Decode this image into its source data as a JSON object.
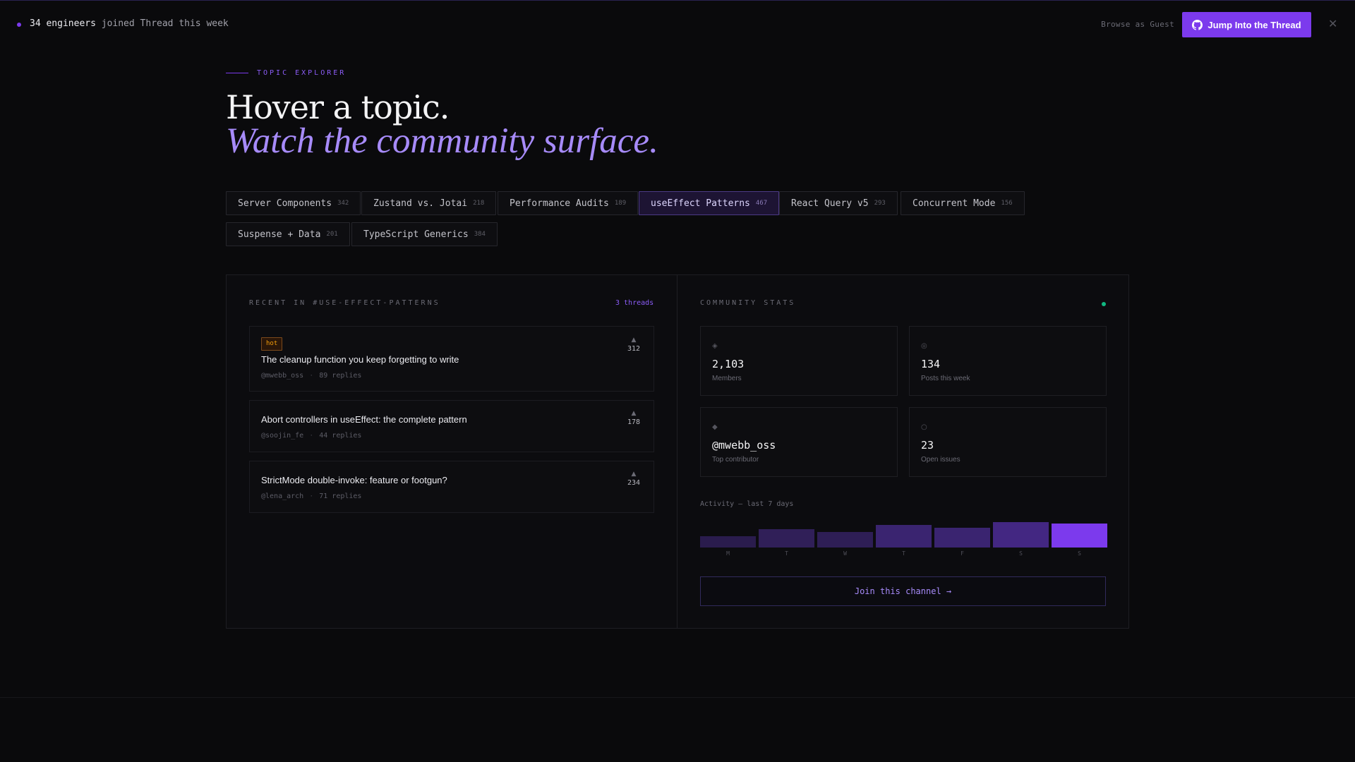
{
  "banner": {
    "count_text": "34 engineers",
    "rest_text": " joined Thread this week",
    "guest_link": "Browse as Guest",
    "cta_label": "Jump Into the Thread",
    "cta_icon": "github-icon",
    "close_icon": "close-icon"
  },
  "hero": {
    "eyebrow": "TOPIC EXPLORER",
    "title_line1": "Hover a topic.",
    "title_line2": "Watch the community surface."
  },
  "topics": [
    {
      "label": "Server Components",
      "count": "342",
      "active": false
    },
    {
      "label": "Zustand vs. Jotai",
      "count": "218",
      "active": false
    },
    {
      "label": "Performance Audits",
      "count": "189",
      "active": false
    },
    {
      "label": "useEffect Patterns",
      "count": "467",
      "active": true
    },
    {
      "label": "React Query v5",
      "count": "293",
      "active": false
    },
    {
      "label": "Concurrent Mode",
      "count": "156",
      "active": false
    },
    {
      "label": "Suspense + Data",
      "count": "201",
      "active": false
    },
    {
      "label": "TypeScript Generics",
      "count": "384",
      "active": false
    }
  ],
  "recent": {
    "label": "RECENT IN #USE-EFFECT-PATTERNS",
    "threads_count": "3 threads",
    "threads": [
      {
        "badge": "hot",
        "title": "The cleanup function you keep forgetting to write",
        "author": "@mwebb_oss",
        "replies": "89 replies",
        "votes": "312"
      },
      {
        "badge": "",
        "title": "Abort controllers in useEffect: the complete pattern",
        "author": "@soojin_fe",
        "replies": "44 replies",
        "votes": "178"
      },
      {
        "badge": "",
        "title": "StrictMode double-invoke: feature or footgun?",
        "author": "@lena_arch",
        "replies": "71 replies",
        "votes": "234"
      }
    ]
  },
  "stats": {
    "label": "COMMUNITY STATS",
    "cards": [
      {
        "icon": "members-icon",
        "glyph": "◈",
        "value": "2,103",
        "label": "Members"
      },
      {
        "icon": "posts-icon",
        "glyph": "◎",
        "value": "134",
        "label": "Posts this week"
      },
      {
        "icon": "contributor-icon",
        "glyph": "◆",
        "value": "@mwebb_oss",
        "label": "Top contributor"
      },
      {
        "icon": "issues-icon",
        "glyph": "○",
        "value": "23",
        "label": "Open issues"
      }
    ],
    "activity_label": "Activity — last 7 days",
    "activity": {
      "days": [
        "M",
        "T",
        "W",
        "T",
        "F",
        "S",
        "S"
      ],
      "levels": [
        0.38,
        0.62,
        0.52,
        0.76,
        0.66,
        0.86,
        0.82
      ]
    },
    "join_label": "Join this channel →"
  },
  "colors": {
    "accent": "#7c3aed",
    "accent_light": "#a78bfa",
    "hot": "#f59e0b",
    "online": "#10b981"
  }
}
